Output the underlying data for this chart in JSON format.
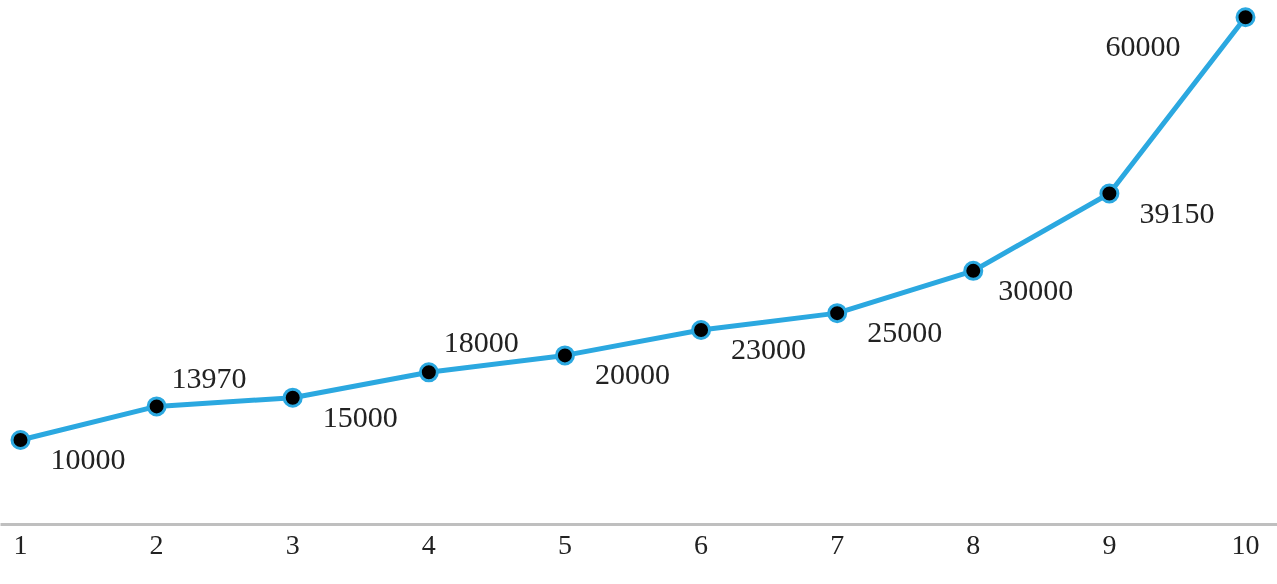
{
  "chart_data": {
    "type": "line",
    "categories": [
      "1",
      "2",
      "3",
      "4",
      "5",
      "6",
      "7",
      "8",
      "9",
      "10"
    ],
    "series": [
      {
        "color": "#2ba8e0",
        "values": [
          10000,
          13970,
          15000,
          18000,
          20000,
          23000,
          25000,
          30000,
          39150,
          60000
        ]
      }
    ],
    "marker": "circle",
    "data_labels": true,
    "tick_labels": "x",
    "grid": false
  }
}
